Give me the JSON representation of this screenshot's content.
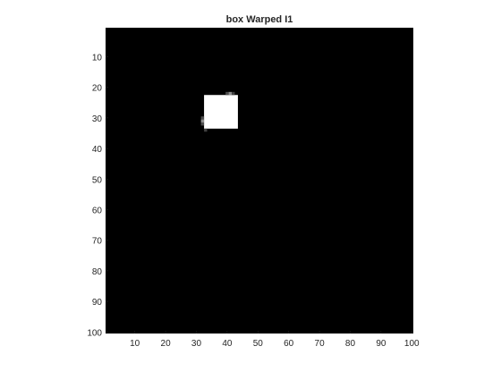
{
  "chart_data": {
    "type": "heatmap",
    "title": "box Warped I1",
    "xlabel": "",
    "ylabel": "",
    "colormap": "gray",
    "background_color": "#000000",
    "xlim": [
      0.5,
      100.5
    ],
    "ylim": [
      0.5,
      100.5
    ],
    "y_reversed": true,
    "x_ticks": [
      10,
      20,
      30,
      40,
      50,
      60,
      70,
      80,
      90,
      100
    ],
    "x_tick_labels": [
      "10",
      "20",
      "30",
      "40",
      "50",
      "60",
      "70",
      "80",
      "90",
      "100"
    ],
    "y_ticks": [
      10,
      20,
      30,
      40,
      50,
      60,
      70,
      80,
      90,
      100
    ],
    "y_tick_labels": [
      "10",
      "20",
      "30",
      "40",
      "50",
      "60",
      "70",
      "80",
      "90",
      "100"
    ],
    "grid": false,
    "regions": [
      {
        "x0": 33,
        "x1": 43,
        "y0": 23,
        "y1": 33,
        "intensity": 1.0
      }
    ],
    "pixels": [
      {
        "x": 40,
        "y": 22,
        "intensity": 0.3
      },
      {
        "x": 41,
        "y": 22,
        "intensity": 0.55
      },
      {
        "x": 42,
        "y": 22,
        "intensity": 0.25
      },
      {
        "x": 32,
        "y": 30,
        "intensity": 0.3
      },
      {
        "x": 32,
        "y": 31,
        "intensity": 0.55
      },
      {
        "x": 32,
        "y": 32,
        "intensity": 0.3
      },
      {
        "x": 33,
        "y": 34,
        "intensity": 0.25
      }
    ]
  }
}
